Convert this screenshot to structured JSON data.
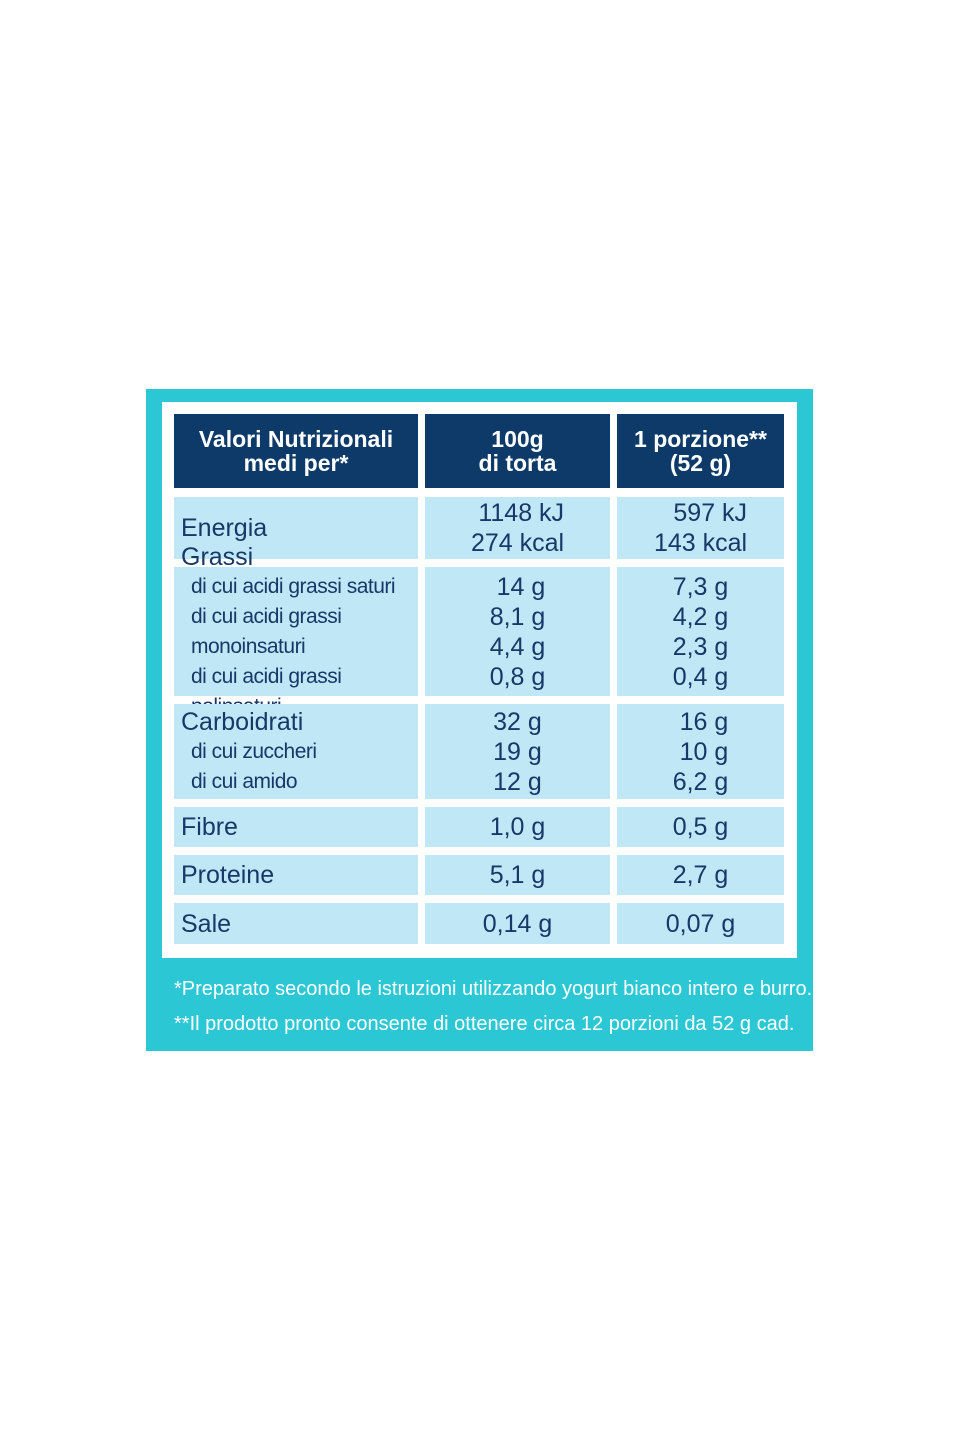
{
  "header": {
    "col1_line1": "Valori Nutrizionali",
    "col1_line2": "medi per*",
    "col2_line1": "100g",
    "col2_line2": "di torta",
    "col3_line1": "1 porzione**",
    "col3_line2": "(52 g)"
  },
  "energy": {
    "label": "Energia",
    "v100_kj": "1148 kJ",
    "v100_kcal": "274 kcal",
    "vp_kj": "597 kJ",
    "vp_kcal": "143 kcal"
  },
  "fats": {
    "label": "Grassi",
    "sub1": "di cui acidi grassi saturi",
    "sub2": "di cui acidi grassi monoinsaturi",
    "sub3": "di cui acidi grassi polinsaturi",
    "v100": [
      "14 g",
      "8,1 g",
      "4,4 g",
      "0,8 g"
    ],
    "vp": [
      "7,3 g",
      "4,2 g",
      "2,3 g",
      "0,4 g"
    ]
  },
  "carbs": {
    "label": "Carboidrati",
    "sub1": "di cui zuccheri",
    "sub2": "di cui amido",
    "v100": [
      "32 g",
      "19 g",
      "12 g"
    ],
    "vp": [
      "16 g",
      "10 g",
      "6,2 g"
    ]
  },
  "fibre": {
    "label": "Fibre",
    "v100": "1,0 g",
    "vp": "0,5 g"
  },
  "protein": {
    "label": "Proteine",
    "v100": "5,1 g",
    "vp": "2,7 g"
  },
  "salt": {
    "label": "Sale",
    "v100": "0,14 g",
    "vp": "0,07 g"
  },
  "footnotes": {
    "note1": "*Preparato secondo le istruzioni utilizzando yogurt bianco intero e burro.",
    "note2": "**Il prodotto pronto consente di ottenere circa 12 porzioni da 52 g cad."
  },
  "colors": {
    "panel": "#2cc7d4",
    "header": "#0d3a68",
    "row": "#bfe7f5",
    "text": "#173868"
  }
}
